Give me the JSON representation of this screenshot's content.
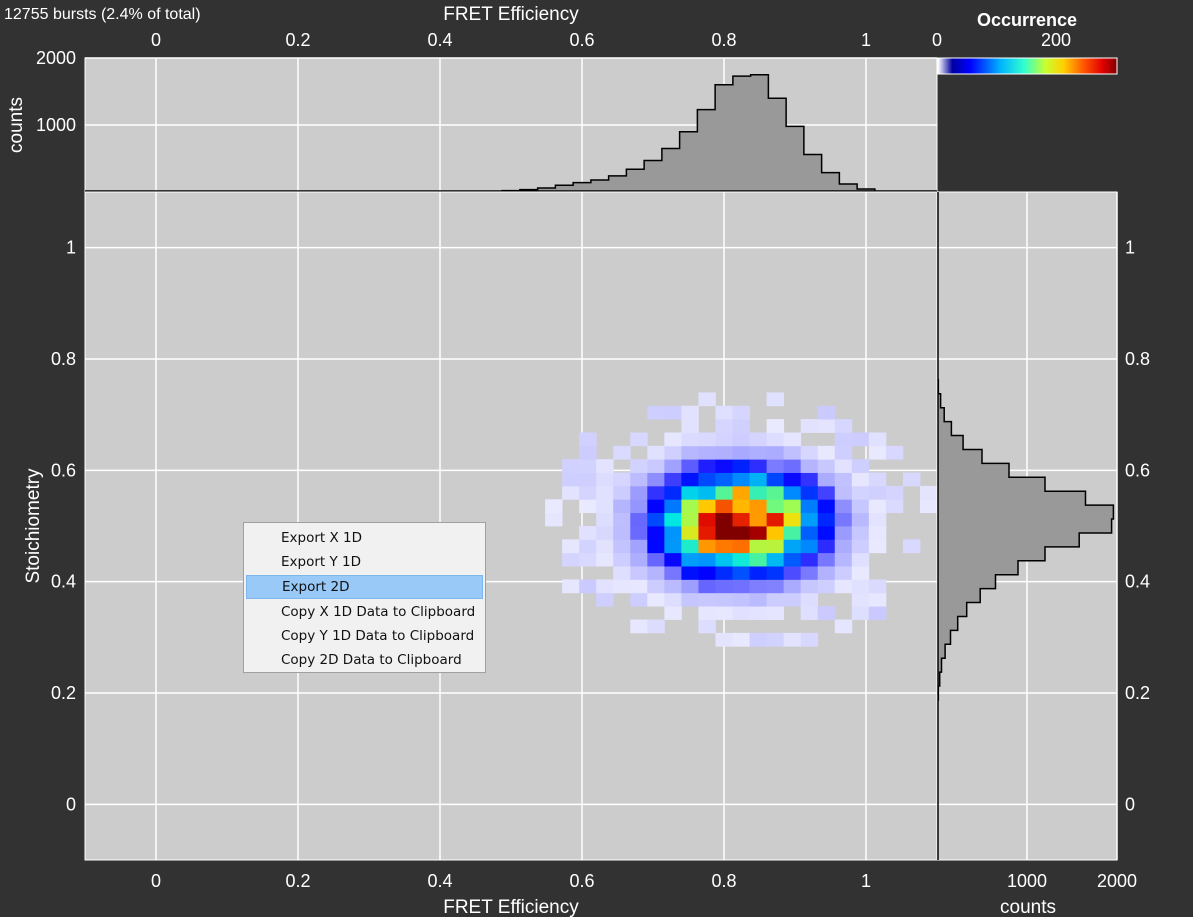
{
  "header": {
    "burst_info": "12755 bursts (2.4% of total)"
  },
  "colorbar": {
    "title": "Occurrence",
    "ticks": [
      "0",
      "200"
    ],
    "colormap": "jet",
    "range": [
      0,
      260
    ]
  },
  "context_menu": {
    "items": [
      {
        "label": "Export X 1D",
        "active": false
      },
      {
        "label": "Export Y 1D",
        "active": false
      },
      {
        "label": "Export 2D",
        "active": true
      },
      {
        "label": "Copy X 1D Data to Clipboard",
        "active": false
      },
      {
        "label": "Copy Y 1D Data to Clipboard",
        "active": false
      },
      {
        "label": "Copy 2D Data to Clipboard",
        "active": false
      }
    ]
  },
  "chart_data": [
    {
      "type": "heatmap",
      "name": "main",
      "xlabel": "FRET Efficiency",
      "ylabel": "Stoichiometry",
      "xlim": [
        -0.1,
        1.1
      ],
      "ylim": [
        -0.1,
        1.1
      ],
      "xticks": [
        "0",
        "0.2",
        "0.4",
        "0.6",
        "0.8",
        "1"
      ],
      "yticks": [
        "0",
        "0.2",
        "0.4",
        "0.6",
        "0.8",
        "1"
      ],
      "grid": true,
      "bins": 50,
      "peak": {
        "x": 0.82,
        "y": 0.505,
        "count": 255
      },
      "spread": {
        "x": 0.075,
        "y": 0.062
      }
    },
    {
      "type": "area",
      "name": "top_histogram",
      "xlabel": "FRET Efficiency",
      "ylabel": "counts",
      "xlim": [
        -0.1,
        1.1
      ],
      "ylim": [
        0,
        2000
      ],
      "yticks": [
        "1000",
        "2000"
      ],
      "x": [
        0.5,
        0.525,
        0.55,
        0.575,
        0.6,
        0.625,
        0.65,
        0.675,
        0.7,
        0.725,
        0.75,
        0.775,
        0.8,
        0.825,
        0.85,
        0.875,
        0.9,
        0.925,
        0.95,
        0.975,
        1.0,
        1.025
      ],
      "values": [
        20,
        35,
        60,
        100,
        140,
        180,
        240,
        340,
        470,
        650,
        900,
        1230,
        1600,
        1730,
        1750,
        1400,
        980,
        560,
        290,
        120,
        45,
        15
      ]
    },
    {
      "type": "area",
      "name": "right_histogram",
      "xlabel": "counts",
      "ylabel": "Stoichiometry",
      "xlim": [
        0,
        2000
      ],
      "ylim": [
        -0.1,
        1.1
      ],
      "xticks": [
        "1000",
        "2000"
      ],
      "y": [
        0.2,
        0.225,
        0.25,
        0.275,
        0.3,
        0.325,
        0.35,
        0.375,
        0.4,
        0.425,
        0.45,
        0.475,
        0.5,
        0.525,
        0.55,
        0.575,
        0.6,
        0.625,
        0.65,
        0.675,
        0.7,
        0.725,
        0.75
      ],
      "values": [
        15,
        30,
        50,
        90,
        150,
        230,
        330,
        480,
        650,
        900,
        1200,
        1580,
        1940,
        1960,
        1650,
        1200,
        800,
        500,
        290,
        160,
        80,
        40,
        15
      ]
    }
  ]
}
